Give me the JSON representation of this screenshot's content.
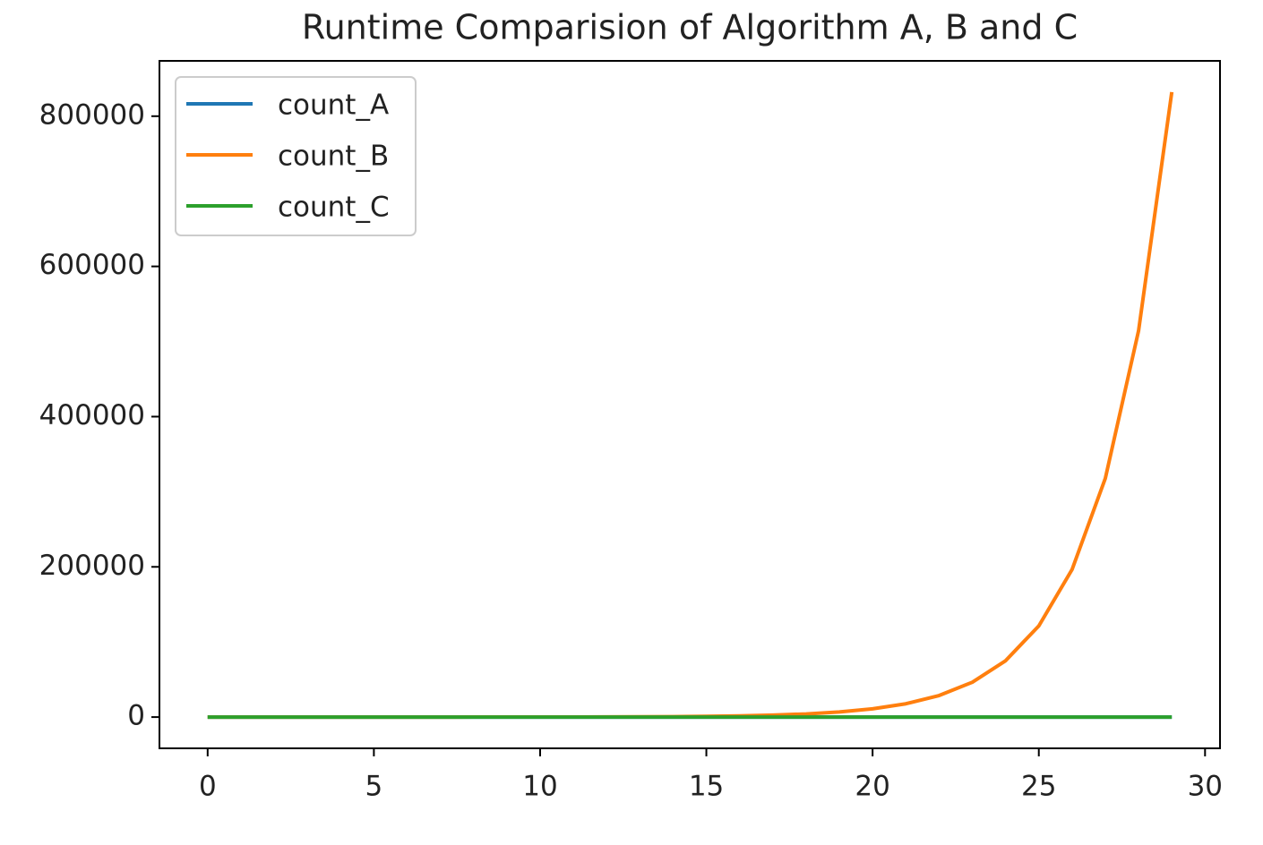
{
  "chart_data": {
    "type": "line",
    "title": "Runtime Comparision of Algorithm A, B and C",
    "x": [
      0,
      1,
      2,
      3,
      4,
      5,
      6,
      7,
      8,
      9,
      10,
      11,
      12,
      13,
      14,
      15,
      16,
      17,
      18,
      19,
      20,
      21,
      22,
      23,
      24,
      25,
      26,
      27,
      28,
      29
    ],
    "series": [
      {
        "name": "count_A",
        "color": "#1f77b4",
        "values": [
          0,
          1,
          2,
          3,
          4,
          5,
          6,
          7,
          8,
          9,
          10,
          11,
          12,
          13,
          14,
          15,
          16,
          17,
          18,
          19,
          20,
          21,
          22,
          23,
          24,
          25,
          26,
          27,
          28,
          29
        ]
      },
      {
        "name": "count_B",
        "color": "#ff7f0e",
        "values": [
          1,
          1,
          2,
          3,
          5,
          8,
          13,
          21,
          34,
          55,
          89,
          144,
          233,
          377,
          610,
          987,
          1597,
          2584,
          4181,
          6765,
          10946,
          17711,
          28657,
          46368,
          75025,
          121393,
          196418,
          317811,
          514229,
          832040
        ]
      },
      {
        "name": "count_C",
        "color": "#2ca02c",
        "values": [
          0,
          1,
          2,
          3,
          4,
          5,
          6,
          7,
          8,
          9,
          10,
          11,
          12,
          13,
          14,
          15,
          16,
          17,
          18,
          19,
          20,
          21,
          22,
          23,
          24,
          25,
          26,
          27,
          28,
          29
        ]
      }
    ],
    "xlim": [
      -1.45,
      30.45
    ],
    "xticks": [
      0,
      5,
      10,
      15,
      20,
      25,
      30
    ],
    "ylim": [
      -41602,
      873642
    ],
    "yticks": [
      0,
      200000,
      400000,
      600000,
      800000
    ],
    "legend": "upper left"
  }
}
